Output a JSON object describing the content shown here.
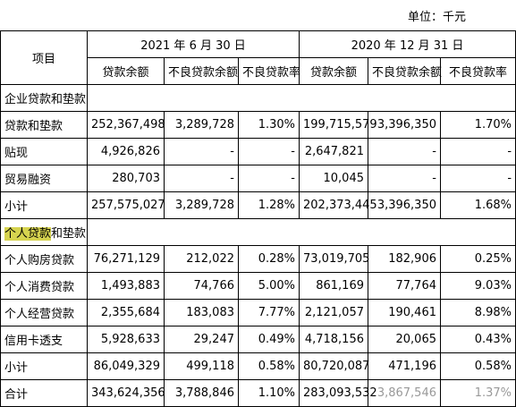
{
  "unit_label": "单位：千元",
  "header": {
    "item": "项目",
    "periods": [
      "2021 年 6 月 30 日",
      "2020 年 12 月 31 日"
    ],
    "subcolumns": [
      "贷款余额",
      "不良贷款余额",
      "不良贷款率",
      "贷款余额",
      "不良贷款余额",
      "不良贷款率"
    ]
  },
  "corporate": {
    "title": "企业贷款和垫款",
    "rows": [
      {
        "label": "贷款和垫款",
        "cells": [
          "252,367,498",
          "3,289,728",
          "1.30%",
          "199,715,579",
          "3,396,350",
          "1.70%"
        ]
      },
      {
        "label": "贴现",
        "cells": [
          "4,926,826",
          "-",
          "-",
          "2,647,821",
          "-",
          "-"
        ]
      },
      {
        "label": "贸易融资",
        "cells": [
          "280,703",
          "-",
          "-",
          "10,045",
          "-",
          "-"
        ]
      },
      {
        "label": "小计",
        "cells": [
          "257,575,027",
          "3,289,728",
          "1.28%",
          "202,373,445",
          "3,396,350",
          "1.68%"
        ]
      }
    ]
  },
  "personal": {
    "title_highlight": "个人贷款",
    "title_rest": "和垫款",
    "rows": [
      {
        "label": "个人购房贷款",
        "cells": [
          "76,271,129",
          "212,022",
          "0.28%",
          "73,019,705",
          "182,906",
          "0.25%"
        ]
      },
      {
        "label": "个人消费贷款",
        "cells": [
          "1,493,883",
          "74,766",
          "5.00%",
          "861,169",
          "77,764",
          "9.03%"
        ]
      },
      {
        "label": "个人经营贷款",
        "cells": [
          "2,355,684",
          "183,083",
          "7.77%",
          "2,121,057",
          "190,461",
          "8.98%"
        ]
      },
      {
        "label": "信用卡透支",
        "cells": [
          "5,928,633",
          "29,247",
          "0.49%",
          "4,718,156",
          "20,065",
          "0.43%"
        ]
      },
      {
        "label": "小计",
        "cells": [
          "86,049,329",
          "499,118",
          "0.58%",
          "80,720,087",
          "471,196",
          "0.58%"
        ]
      }
    ]
  },
  "total": {
    "label": "合计",
    "cells": [
      "343,624,356",
      "3,788,846",
      "1.10%",
      "283,093,532",
      "3,867,546",
      "1.37%"
    ]
  }
}
